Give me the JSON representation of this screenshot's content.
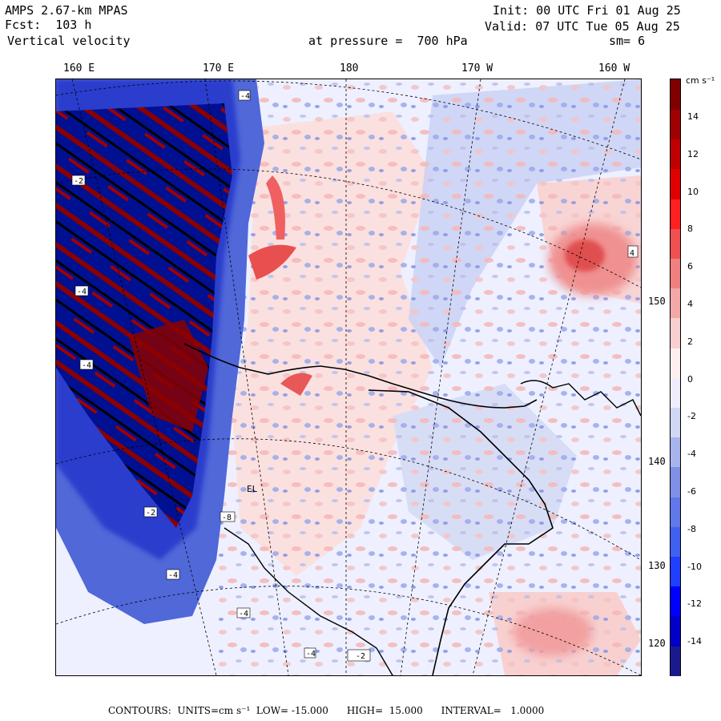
{
  "header": {
    "line1_left": "AMPS 2.67-km MPAS",
    "line2_left": "Fcst:  103 h",
    "line3_left": "Vertical velocity",
    "line1_right": "Init: 00 UTC Fri 01 Aug 25",
    "line2_right": "Valid: 07 UTC Tue 05 Aug 25",
    "pressure": "at pressure =  700 hPa",
    "smoothing": "sm= 6"
  },
  "map": {
    "lon_labels": [
      "160 E",
      "170 E",
      "180",
      "170 W",
      "160 W"
    ],
    "lat_labels": [
      "150 W",
      "140 W",
      "130 W",
      "120 W"
    ],
    "station_label": "EL",
    "contour_labels": [
      "-4",
      "-2",
      "4",
      "-4",
      "-4",
      "-2",
      "-4",
      "-4",
      "-8",
      "-4",
      "-2"
    ]
  },
  "colorbar": {
    "unit": "cm s⁻¹",
    "ticks": [
      "14",
      "12",
      "10",
      "8",
      "6",
      "4",
      "2",
      "0",
      "-2",
      "-4",
      "-6",
      "-8",
      "-10",
      "-12",
      "-14"
    ],
    "colors": [
      "#1a1a8c",
      "#0000c8",
      "#0000ff",
      "#2040ff",
      "#4060f0",
      "#6078e8",
      "#8090e6",
      "#a8b4ee",
      "#d0d8f6",
      "#eeeeff",
      "#fff0f0",
      "#f8d0d0",
      "#f4a8a8",
      "#f08080",
      "#f05050",
      "#ff2020",
      "#e00000",
      "#c00000",
      "#a00000",
      "#800000"
    ]
  },
  "footer": {
    "text": "CONTOURS:  UNITS=cm s⁻¹  LOW= -15.000      HIGH=  15.000      INTERVAL=   1.0000"
  }
}
